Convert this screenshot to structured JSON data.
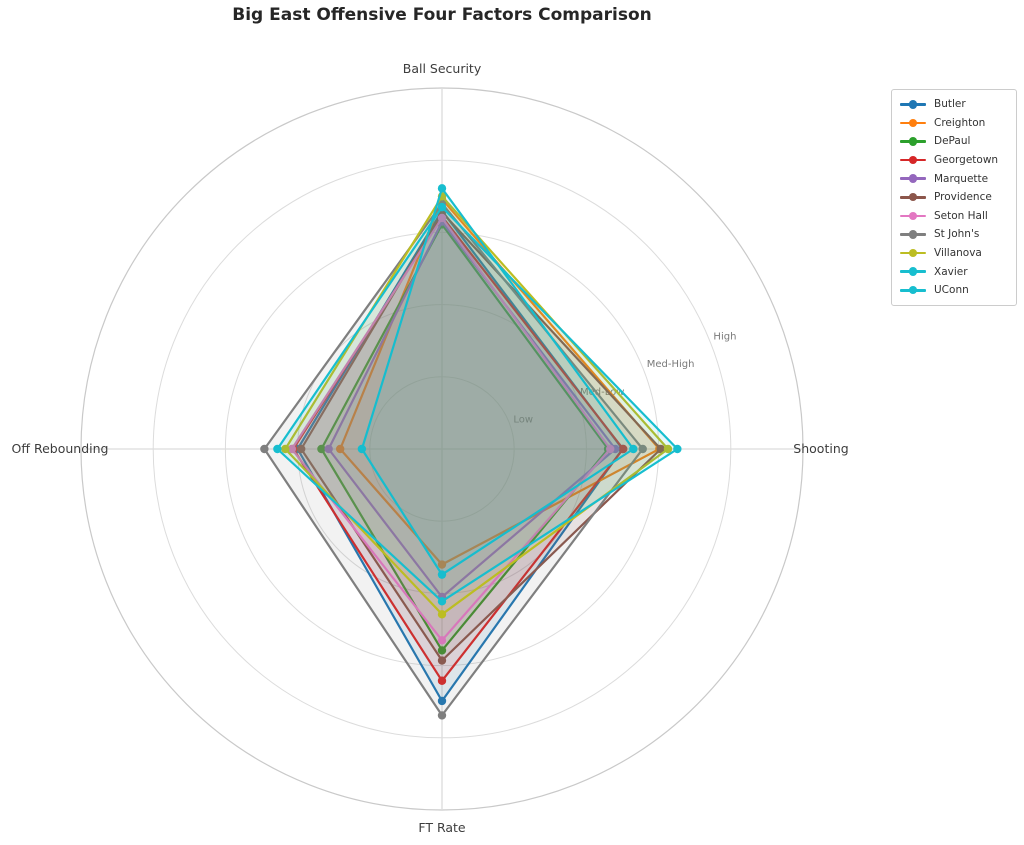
{
  "title": "Big East Offensive Four Factors Comparison",
  "chart_data": {
    "type": "radar",
    "title": "Big East Offensive Four Factors Comparison",
    "categories": [
      "Ball Security",
      "Shooting",
      "FT Rate",
      "Off Rebounding"
    ],
    "radial_ticks": [
      "Low",
      "Med-Low",
      "Med-High",
      "High"
    ],
    "radial_tick_values": [
      1,
      2,
      3,
      4
    ],
    "r_range": [
      0,
      5
    ],
    "grid": "on",
    "legend_position": "upper right",
    "series": [
      {
        "name": "Butler",
        "color": "#1f77b4",
        "values": [
          3.3,
          2.5,
          3.49,
          2.0
        ]
      },
      {
        "name": "Creighton",
        "color": "#ff7f0e",
        "values": [
          3.46,
          3.01,
          1.6,
          1.41
        ]
      },
      {
        "name": "DePaul",
        "color": "#2ca02c",
        "values": [
          3.11,
          2.3,
          2.79,
          1.67
        ]
      },
      {
        "name": "Georgetown",
        "color": "#d62728",
        "values": [
          3.22,
          2.51,
          3.21,
          2.06
        ]
      },
      {
        "name": "Marquette",
        "color": "#9467bd",
        "values": [
          3.15,
          2.4,
          2.05,
          1.57
        ]
      },
      {
        "name": "Providence",
        "color": "#8c564b",
        "values": [
          3.28,
          3.03,
          2.93,
          1.95
        ]
      },
      {
        "name": "Seton Hall",
        "color": "#e377c2",
        "values": [
          3.2,
          2.33,
          2.65,
          2.08
        ]
      },
      {
        "name": "St John's",
        "color": "#7f7f7f",
        "values": [
          3.4,
          2.78,
          3.69,
          2.46
        ]
      },
      {
        "name": "Villanova",
        "color": "#bcbd22",
        "values": [
          3.5,
          3.13,
          2.29,
          2.17
        ]
      },
      {
        "name": "Xavier",
        "color": "#17becf",
        "values": [
          3.61,
          2.65,
          1.74,
          1.11
        ]
      },
      {
        "name": "UConn",
        "color": "#17becf",
        "values": [
          3.35,
          3.26,
          2.11,
          2.28
        ]
      }
    ],
    "style": {
      "fill_alpha": 0.1,
      "grid_color": "#dcdcdc",
      "spine_color": "#c9c9c9",
      "axis_label_color": "#3d3d3d",
      "tick_label_color": "#7a7a7a"
    }
  }
}
